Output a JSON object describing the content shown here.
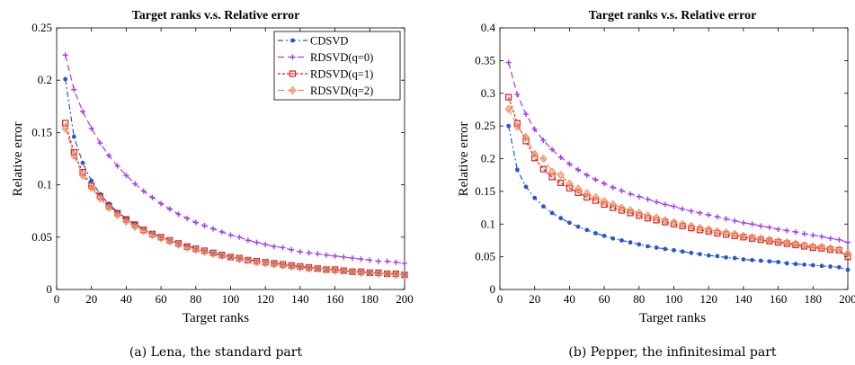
{
  "chart_data": [
    {
      "type": "line",
      "title": "Target ranks v.s. Relative error",
      "xlabel": "Target ranks",
      "ylabel": "Relative error",
      "caption": "(a) Lena, the standard part",
      "xlim": [
        0,
        200
      ],
      "ylim": [
        0,
        0.25
      ],
      "xticks": [
        "0",
        "20",
        "40",
        "60",
        "80",
        "100",
        "120",
        "140",
        "160",
        "180",
        "200"
      ],
      "yticks": [
        "0",
        "0.05",
        "0.1",
        "0.15",
        "0.2",
        "0.25"
      ],
      "legend_position": "top-right",
      "x": [
        5,
        10,
        15,
        20,
        25,
        30,
        35,
        40,
        45,
        50,
        55,
        60,
        65,
        70,
        75,
        80,
        85,
        90,
        95,
        100,
        105,
        110,
        115,
        120,
        125,
        130,
        135,
        140,
        145,
        150,
        155,
        160,
        165,
        170,
        175,
        180,
        185,
        190,
        195,
        200
      ],
      "series": [
        {
          "name": "CDSVD",
          "color": "#2457d6",
          "marker": "dot",
          "dash": "6,3,2,3",
          "values": [
            0.201,
            0.146,
            0.121,
            0.104,
            0.091,
            0.082,
            0.074,
            0.068,
            0.063,
            0.058,
            0.054,
            0.05,
            0.047,
            0.044,
            0.042,
            0.039,
            0.037,
            0.035,
            0.033,
            0.031,
            0.03,
            0.029,
            0.027,
            0.026,
            0.025,
            0.024,
            0.023,
            0.022,
            0.021,
            0.02,
            0.019,
            0.019,
            0.018,
            0.017,
            0.017,
            0.016,
            0.016,
            0.015,
            0.015,
            0.014
          ]
        },
        {
          "name": "RDSVD(q=0)",
          "color": "#a23cf0",
          "marker": "plus",
          "dash": "7,4",
          "values": [
            0.224,
            0.191,
            0.17,
            0.154,
            0.14,
            0.128,
            0.118,
            0.109,
            0.101,
            0.094,
            0.088,
            0.082,
            0.077,
            0.072,
            0.068,
            0.064,
            0.061,
            0.058,
            0.055,
            0.052,
            0.05,
            0.047,
            0.045,
            0.043,
            0.041,
            0.04,
            0.038,
            0.036,
            0.035,
            0.034,
            0.033,
            0.032,
            0.031,
            0.03,
            0.029,
            0.028,
            0.027,
            0.027,
            0.026,
            0.025
          ]
        },
        {
          "name": "RDSVD(q=1)",
          "color": "#d81e1e",
          "marker": "square",
          "dash": "3,2",
          "values": [
            0.159,
            0.131,
            0.112,
            0.099,
            0.089,
            0.08,
            0.073,
            0.067,
            0.062,
            0.057,
            0.053,
            0.05,
            0.047,
            0.044,
            0.041,
            0.039,
            0.037,
            0.035,
            0.033,
            0.031,
            0.03,
            0.028,
            0.027,
            0.026,
            0.025,
            0.024,
            0.023,
            0.022,
            0.021,
            0.02,
            0.019,
            0.019,
            0.018,
            0.017,
            0.017,
            0.016,
            0.016,
            0.015,
            0.015,
            0.014
          ]
        },
        {
          "name": "RDSVD(q=2)",
          "color": "#f08a5a",
          "marker": "diamond",
          "dash": "7,4",
          "values": [
            0.154,
            0.128,
            0.109,
            0.097,
            0.087,
            0.078,
            0.071,
            0.065,
            0.06,
            0.056,
            0.052,
            0.049,
            0.046,
            0.043,
            0.04,
            0.038,
            0.036,
            0.034,
            0.032,
            0.031,
            0.029,
            0.028,
            0.026,
            0.025,
            0.024,
            0.023,
            0.022,
            0.021,
            0.02,
            0.02,
            0.019,
            0.018,
            0.018,
            0.017,
            0.016,
            0.016,
            0.015,
            0.015,
            0.014,
            0.014
          ]
        }
      ]
    },
    {
      "type": "line",
      "title": "Target ranks v.s. Relative error",
      "xlabel": "Target ranks",
      "ylabel": "Relative error",
      "caption": "(b) Pepper, the infinitesimal part",
      "xlim": [
        0,
        200
      ],
      "ylim": [
        0,
        0.4
      ],
      "xticks": [
        "0",
        "20",
        "40",
        "60",
        "80",
        "100",
        "120",
        "140",
        "160",
        "180",
        "200"
      ],
      "yticks": [
        "0",
        "0.05",
        "0.1",
        "0.15",
        "0.2",
        "0.25",
        "0.3",
        "0.35",
        "0.4"
      ],
      "x": [
        5,
        10,
        15,
        20,
        25,
        30,
        35,
        40,
        45,
        50,
        55,
        60,
        65,
        70,
        75,
        80,
        85,
        90,
        95,
        100,
        105,
        110,
        115,
        120,
        125,
        130,
        135,
        140,
        145,
        150,
        155,
        160,
        165,
        170,
        175,
        180,
        185,
        190,
        195,
        200
      ],
      "series": [
        {
          "name": "CDSVD",
          "color": "#2457d6",
          "marker": "dot",
          "dash": "6,3,2,3",
          "values": [
            0.25,
            0.183,
            0.157,
            0.14,
            0.127,
            0.117,
            0.109,
            0.102,
            0.096,
            0.091,
            0.086,
            0.082,
            0.078,
            0.075,
            0.072,
            0.069,
            0.066,
            0.064,
            0.062,
            0.06,
            0.058,
            0.056,
            0.054,
            0.052,
            0.051,
            0.049,
            0.048,
            0.046,
            0.045,
            0.044,
            0.043,
            0.042,
            0.04,
            0.039,
            0.038,
            0.037,
            0.036,
            0.035,
            0.034,
            0.03
          ]
        },
        {
          "name": "RDSVD(q=0)",
          "color": "#a23cf0",
          "marker": "plus",
          "dash": "7,4",
          "values": [
            0.347,
            0.298,
            0.268,
            0.245,
            0.228,
            0.214,
            0.202,
            0.192,
            0.183,
            0.175,
            0.168,
            0.162,
            0.156,
            0.151,
            0.146,
            0.142,
            0.138,
            0.134,
            0.13,
            0.127,
            0.123,
            0.12,
            0.117,
            0.114,
            0.111,
            0.108,
            0.105,
            0.102,
            0.1,
            0.097,
            0.095,
            0.092,
            0.09,
            0.088,
            0.085,
            0.083,
            0.081,
            0.078,
            0.076,
            0.072
          ]
        },
        {
          "name": "RDSVD(q=1)",
          "color": "#d81e1e",
          "marker": "square",
          "dash": "3,2",
          "values": [
            0.294,
            0.254,
            0.227,
            0.201,
            0.184,
            0.172,
            0.163,
            0.155,
            0.148,
            0.141,
            0.136,
            0.13,
            0.125,
            0.121,
            0.117,
            0.113,
            0.109,
            0.106,
            0.103,
            0.1,
            0.097,
            0.094,
            0.091,
            0.089,
            0.086,
            0.084,
            0.082,
            0.08,
            0.078,
            0.076,
            0.074,
            0.072,
            0.07,
            0.068,
            0.066,
            0.064,
            0.063,
            0.061,
            0.06,
            0.05
          ]
        },
        {
          "name": "RDSVD(q=2)",
          "color": "#f08a5a",
          "marker": "diamond",
          "dash": "7,4",
          "values": [
            0.276,
            0.249,
            0.233,
            0.207,
            0.2,
            0.18,
            0.175,
            0.162,
            0.154,
            0.147,
            0.141,
            0.135,
            0.13,
            0.125,
            0.121,
            0.117,
            0.113,
            0.11,
            0.106,
            0.103,
            0.1,
            0.097,
            0.094,
            0.092,
            0.089,
            0.087,
            0.085,
            0.082,
            0.08,
            0.078,
            0.076,
            0.074,
            0.072,
            0.07,
            0.068,
            0.066,
            0.065,
            0.063,
            0.061,
            0.055
          ]
        }
      ]
    }
  ]
}
